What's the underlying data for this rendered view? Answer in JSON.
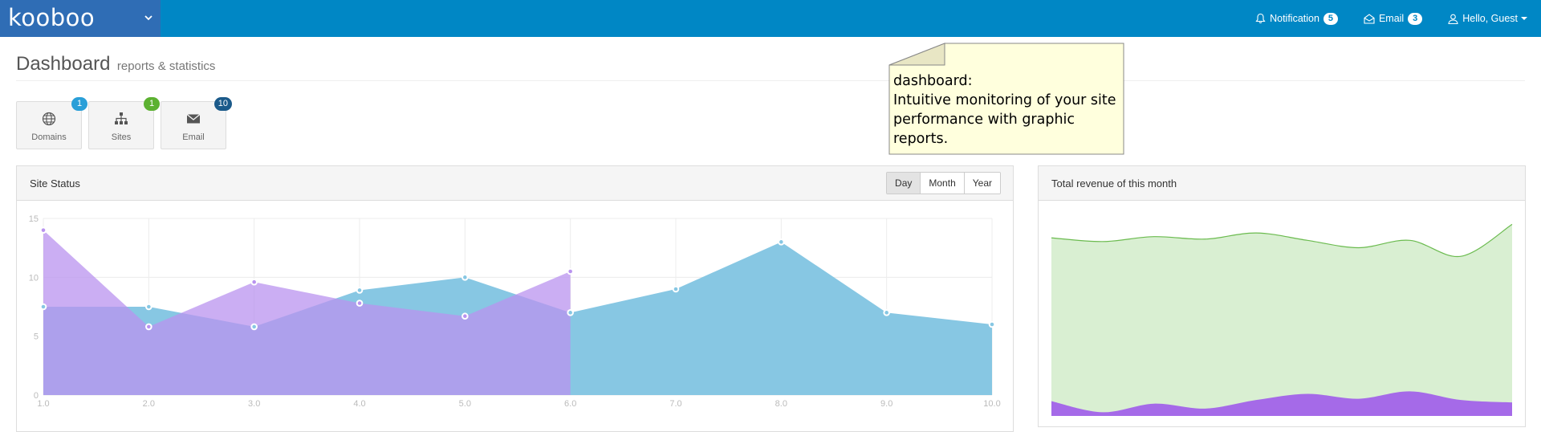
{
  "app": {
    "logo": "kooboo"
  },
  "nav": {
    "notification": {
      "label": "Notification",
      "count": "5",
      "icon": "bell-icon"
    },
    "email": {
      "label": "Email",
      "count": "3",
      "icon": "envelope-open-icon"
    },
    "user": {
      "label": "Hello, Guest",
      "icon": "user-icon"
    }
  },
  "header": {
    "title": "Dashboard",
    "subtitle": "reports & statistics"
  },
  "tiles": [
    {
      "label": "Domains",
      "badge": "1",
      "icon": "globe-icon",
      "badge_color": "#2a9fd8"
    },
    {
      "label": "Sites",
      "badge": "1",
      "icon": "sitemap-icon",
      "badge_color": "#5cb131"
    },
    {
      "label": "Email",
      "badge": "10",
      "icon": "envelope-icon",
      "badge_color": "#1b5a8a"
    }
  ],
  "site_status": {
    "title": "Site Status",
    "ranges": [
      "Day",
      "Month",
      "Year"
    ],
    "active_range": "Day"
  },
  "revenue": {
    "title": "Total revenue of this month"
  },
  "tooltip": {
    "title": "dashboard:",
    "body": "Intuitive monitoring of your site performance with graphic reports."
  },
  "colors": {
    "topbar": "#0087c5",
    "brand": "#2f6db5",
    "series_blue": "#87c7e3",
    "series_purple": "#b993ef",
    "revenue_green": "#d9efd2",
    "revenue_purple": "#a56ae8"
  },
  "chart_data": [
    {
      "type": "area",
      "title": "",
      "xlim": [
        1.0,
        10.0
      ],
      "ylim": [
        0,
        15
      ],
      "x_ticks": [
        "1.0",
        "2.0",
        "3.0",
        "4.0",
        "5.0",
        "6.0",
        "7.0",
        "8.0",
        "9.0",
        "10.0"
      ],
      "y_ticks": [
        "0",
        "5",
        "10",
        "15"
      ],
      "grid": true,
      "series": [
        {
          "x": [
            1,
            2,
            3,
            4,
            5,
            6,
            7,
            8,
            9,
            10
          ],
          "values": [
            7.5,
            7.5,
            5.8,
            8.9,
            10.0,
            7.0,
            9.0,
            13.0,
            7.0,
            6.0
          ],
          "color": "#87c7e3"
        },
        {
          "x": [
            1,
            2,
            3,
            4,
            5,
            6
          ],
          "values": [
            14.0,
            5.8,
            9.6,
            7.8,
            6.7,
            10.5
          ],
          "color": "#b993ef"
        }
      ]
    },
    {
      "type": "area",
      "title": "",
      "grid": false,
      "series": [
        {
          "values": [
            14.5,
            14.2,
            14.6,
            14.4,
            14.9,
            14.3,
            13.7,
            14.3,
            13.0,
            15.6
          ],
          "color": "#d9efd2"
        },
        {
          "values": [
            1.2,
            0.3,
            1.0,
            0.6,
            1.3,
            1.8,
            1.4,
            2.0,
            1.3,
            1.1
          ],
          "color": "#a56ae8"
        }
      ]
    }
  ]
}
